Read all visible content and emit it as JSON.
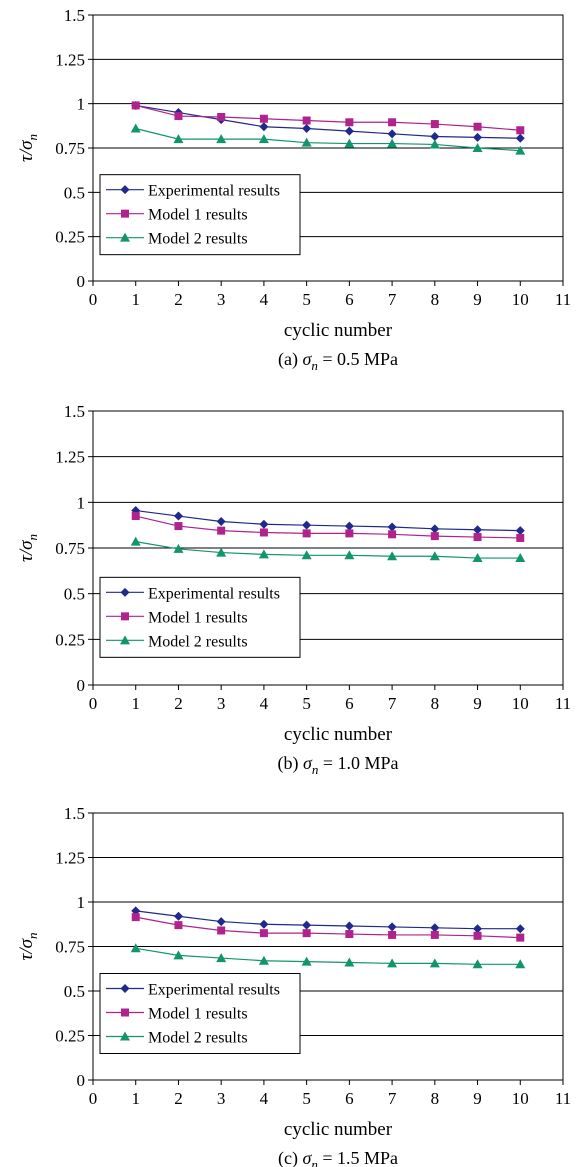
{
  "chart_data": [
    {
      "type": "line",
      "xlabel": "cyclic number",
      "ylabel": "τ/σn",
      "caption": {
        "prefix": "(a) ",
        "sym": "σ",
        "sub": "n",
        "rest": " = 0.5 MPa"
      },
      "xlim": [
        0,
        11
      ],
      "ylim": [
        0,
        1.5
      ],
      "xticks": [
        "0",
        "1",
        "2",
        "3",
        "4",
        "5",
        "6",
        "7",
        "8",
        "9",
        "10",
        "11"
      ],
      "yticks": [
        "0",
        "0.25",
        "0.5",
        "0.75",
        "1",
        "1.25",
        "1.5"
      ],
      "grid": "horizontal",
      "legend_position": "lower-left",
      "x": [
        1,
        2,
        3,
        4,
        5,
        6,
        7,
        8,
        9,
        10
      ],
      "series": [
        {
          "name": "Experimental results",
          "marker": "diamond",
          "color": "#1f2a8c",
          "values": [
            0.99,
            0.95,
            0.91,
            0.87,
            0.86,
            0.845,
            0.83,
            0.815,
            0.81,
            0.805
          ]
        },
        {
          "name": "Model 1 results",
          "marker": "square",
          "color": "#b0228c",
          "values": [
            0.99,
            0.93,
            0.925,
            0.915,
            0.905,
            0.895,
            0.895,
            0.885,
            0.87,
            0.85
          ]
        },
        {
          "name": "Model 2 results",
          "marker": "triangle",
          "color": "#11956a",
          "values": [
            0.86,
            0.8,
            0.8,
            0.8,
            0.78,
            0.775,
            0.775,
            0.77,
            0.75,
            0.735
          ]
        }
      ]
    },
    {
      "type": "line",
      "xlabel": "cyclic number",
      "ylabel": "τ/σn",
      "caption": {
        "prefix": "(b) ",
        "sym": "σ",
        "sub": "n",
        "rest": " = 1.0 MPa"
      },
      "xlim": [
        0,
        11
      ],
      "ylim": [
        0,
        1.5
      ],
      "xticks": [
        "0",
        "1",
        "2",
        "3",
        "4",
        "5",
        "6",
        "7",
        "8",
        "9",
        "10",
        "11"
      ],
      "yticks": [
        "0",
        "0.25",
        "0.5",
        "0.75",
        "1",
        "1.25",
        "1.5"
      ],
      "grid": "horizontal",
      "legend_position": "lower-left",
      "x": [
        1,
        2,
        3,
        4,
        5,
        6,
        7,
        8,
        9,
        10
      ],
      "series": [
        {
          "name": "Experimental results",
          "marker": "diamond",
          "color": "#1f2a8c",
          "values": [
            0.955,
            0.925,
            0.895,
            0.88,
            0.875,
            0.87,
            0.865,
            0.855,
            0.85,
            0.845
          ]
        },
        {
          "name": "Model 1 results",
          "marker": "square",
          "color": "#b0228c",
          "values": [
            0.925,
            0.87,
            0.845,
            0.835,
            0.83,
            0.83,
            0.825,
            0.815,
            0.81,
            0.805
          ]
        },
        {
          "name": "Model 2 results",
          "marker": "triangle",
          "color": "#11956a",
          "values": [
            0.785,
            0.745,
            0.725,
            0.715,
            0.71,
            0.71,
            0.705,
            0.705,
            0.695,
            0.695
          ]
        }
      ]
    },
    {
      "type": "line",
      "xlabel": "cyclic number",
      "ylabel": "τ/σn",
      "caption": {
        "prefix": "(c) ",
        "sym": "σ",
        "sub": "n",
        "rest": " = 1.5 MPa"
      },
      "xlim": [
        0,
        11
      ],
      "ylim": [
        0,
        1.5
      ],
      "xticks": [
        "0",
        "1",
        "2",
        "3",
        "4",
        "5",
        "6",
        "7",
        "8",
        "9",
        "10",
        "11"
      ],
      "yticks": [
        "0",
        "0.25",
        "0.5",
        "0.75",
        "1",
        "1.25",
        "1.5"
      ],
      "grid": "horizontal",
      "legend_position": "lower-left",
      "x": [
        1,
        2,
        3,
        4,
        5,
        6,
        7,
        8,
        9,
        10
      ],
      "series": [
        {
          "name": "Experimental results",
          "marker": "diamond",
          "color": "#1f2a8c",
          "values": [
            0.95,
            0.92,
            0.89,
            0.875,
            0.87,
            0.865,
            0.86,
            0.855,
            0.85,
            0.85
          ]
        },
        {
          "name": "Model 1 results",
          "marker": "square",
          "color": "#b0228c",
          "values": [
            0.915,
            0.87,
            0.84,
            0.825,
            0.825,
            0.82,
            0.815,
            0.815,
            0.81,
            0.8
          ]
        },
        {
          "name": "Model 2 results",
          "marker": "triangle",
          "color": "#11956a",
          "values": [
            0.74,
            0.7,
            0.685,
            0.67,
            0.665,
            0.66,
            0.655,
            0.655,
            0.65,
            0.65
          ]
        }
      ]
    }
  ]
}
